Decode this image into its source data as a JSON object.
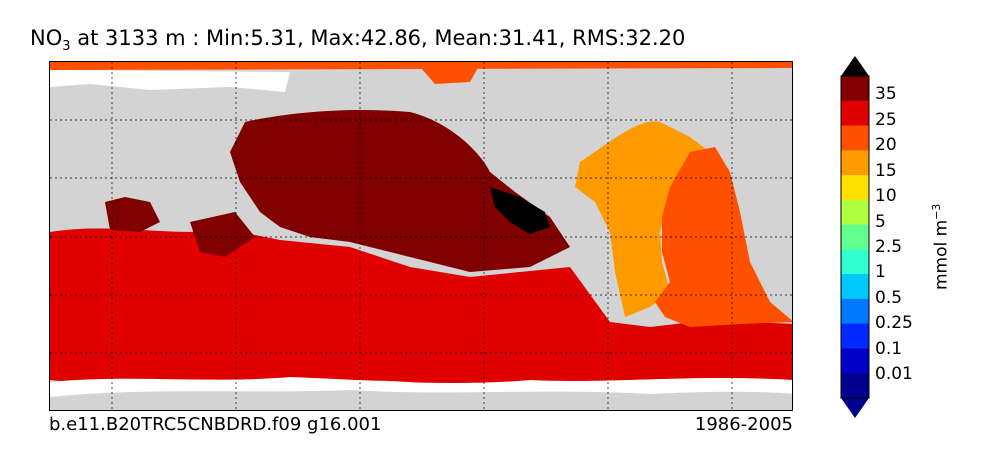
{
  "title": {
    "variable": "NO",
    "subscript": "3",
    "rest": " at 3133 m : Min:5.31, Max:42.86, Mean:31.41, RMS:32.20"
  },
  "footer": {
    "case_name": "b.e11.B20TRC5CNBDRD.f09 g16.001",
    "period": "1986-2005"
  },
  "colorbar": {
    "units_prefix": "mmol m",
    "units_exp": "−3",
    "levels": [
      "35",
      "25",
      "20",
      "15",
      "10",
      "5",
      "2.5",
      "1",
      "0.5",
      "0.25",
      "0.1",
      "0.01"
    ],
    "colors": [
      "#800000",
      "#e00000",
      "#ff5000",
      "#ff9a00",
      "#ffe000",
      "#b0ff40",
      "#60ff90",
      "#30ffcf",
      "#00c8ff",
      "#0078ff",
      "#0028ff",
      "#0000c8",
      "#00008c"
    ]
  },
  "map_colors": {
    "land": "#d3d3d3",
    "missing": "#ffffff",
    "max_region": "#000000"
  }
}
